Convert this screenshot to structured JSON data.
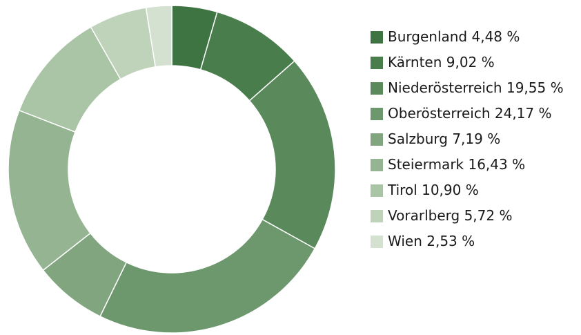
{
  "chart_data": {
    "type": "donut",
    "categories": [
      "Burgenland",
      "Kärnten",
      "Niederösterreich",
      "Oberösterreich",
      "Salzburg",
      "Steiermark",
      "Tirol",
      "Vorarlberg",
      "Wien"
    ],
    "values": [
      4.48,
      9.02,
      19.55,
      24.17,
      7.19,
      16.43,
      10.9,
      5.72,
      2.53
    ],
    "value_labels": [
      "4,48 %",
      "9,02 %",
      "19,55 %",
      "24,17 %",
      "7,19 %",
      "16,43 %",
      "10,90 %",
      "5,72 %",
      "2,53 %"
    ],
    "colors": [
      "#3d7442",
      "#4a7d4c",
      "#5a8a5c",
      "#6d976d",
      "#81a67f",
      "#95b492",
      "#aac4a6",
      "#bfd3bb",
      "#d4e1d1"
    ],
    "legend": "right"
  }
}
